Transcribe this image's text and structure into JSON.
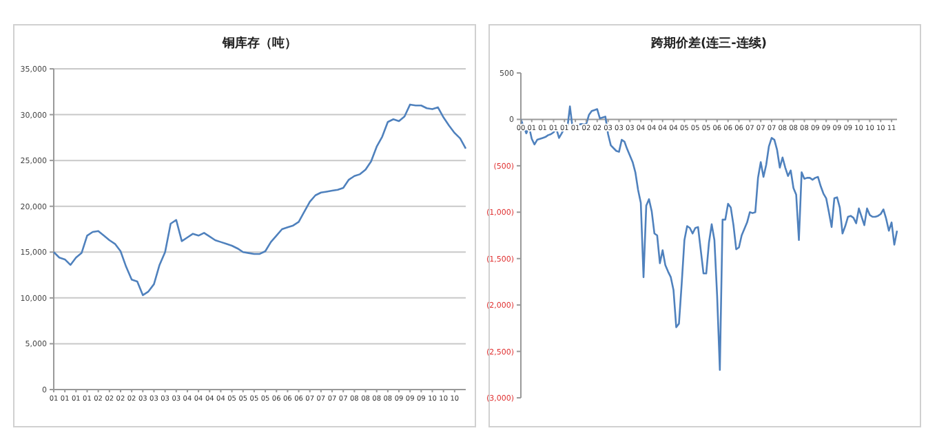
{
  "chart_data": [
    {
      "type": "line",
      "title": "铜库存（吨）",
      "grid": "y",
      "ylim": [
        0,
        35000
      ],
      "yticks": [
        {
          "value": 0,
          "label": "0"
        },
        {
          "value": 5000,
          "label": "5,000"
        },
        {
          "value": 10000,
          "label": "10,000"
        },
        {
          "value": 15000,
          "label": "15,000"
        },
        {
          "value": 20000,
          "label": "20,000"
        },
        {
          "value": 25000,
          "label": "25,000"
        },
        {
          "value": 30000,
          "label": "30,000"
        },
        {
          "value": 35000,
          "label": "35,000"
        }
      ],
      "categories": [
        "01",
        null,
        "01",
        null,
        "01",
        null,
        "01",
        null,
        "02",
        null,
        "02",
        null,
        "02",
        null,
        "02",
        null,
        "03",
        null,
        "03",
        null,
        "03",
        null,
        "03",
        null,
        "04",
        null,
        "04",
        null,
        "04",
        null,
        "04",
        null,
        "05",
        null,
        "05",
        null,
        "05",
        null,
        "05",
        null,
        "06",
        null,
        "06",
        null,
        "06",
        null,
        "07",
        null,
        "07",
        null,
        "07",
        null,
        "07",
        null,
        "08",
        null,
        "08",
        null,
        "08",
        null,
        "08",
        null,
        "09",
        null,
        "09",
        null,
        "09",
        null,
        "10",
        null,
        "10",
        null,
        "10",
        null,
        null
      ],
      "series": [
        {
          "color": "#4f81bd",
          "values": [
            15000,
            14400,
            14200,
            13600,
            14400,
            14900,
            16800,
            17200,
            17300,
            16800,
            16300,
            15900,
            15100,
            13400,
            12000,
            11800,
            10300,
            10700,
            11500,
            13600,
            15000,
            18100,
            18500,
            16200,
            16600,
            17000,
            16800,
            17100,
            16700,
            16300,
            16100,
            15900,
            15700,
            15400,
            15000,
            14900,
            14800,
            14800,
            15100,
            16100,
            16800,
            17500,
            17700,
            17900,
            18300,
            19400,
            20500,
            21200,
            21500,
            21600,
            21700,
            21800,
            22000,
            22900,
            23300,
            23500,
            24000,
            24900,
            26500,
            27600,
            29200,
            29500,
            29300,
            29800,
            31100,
            31000,
            31000,
            30700,
            30600,
            30800,
            29700,
            28800,
            28000,
            27400,
            26300
          ]
        }
      ]
    },
    {
      "type": "line",
      "title": "跨期价差(连三-连续)",
      "ylim": [
        -3000,
        500
      ],
      "yticks": [
        {
          "value": 500,
          "label": "500"
        },
        {
          "value": 0,
          "label": "0"
        },
        {
          "value": -500,
          "label": "(500)"
        },
        {
          "value": -1000,
          "label": "(1,000)"
        },
        {
          "value": -1500,
          "label": "(1,500)"
        },
        {
          "value": -2000,
          "label": "(2,000)"
        },
        {
          "value": -2500,
          "label": "(2,500)"
        },
        {
          "value": -3000,
          "label": "(3,000)"
        }
      ],
      "categories": [
        "00",
        null,
        null,
        null,
        "01",
        null,
        null,
        null,
        "01",
        null,
        null,
        null,
        "01",
        null,
        null,
        null,
        "01",
        null,
        null,
        null,
        "01",
        null,
        null,
        null,
        "02",
        null,
        null,
        null,
        "02",
        null,
        null,
        null,
        "03",
        null,
        null,
        null,
        "03",
        null,
        null,
        null,
        "03",
        null,
        null,
        null,
        "04",
        null,
        null,
        null,
        "04",
        null,
        null,
        null,
        "04",
        null,
        null,
        null,
        "04",
        null,
        null,
        null,
        "05",
        null,
        null,
        null,
        "05",
        null,
        null,
        null,
        "05",
        null,
        null,
        null,
        "06",
        null,
        null,
        null,
        "06",
        null,
        null,
        null,
        "06",
        null,
        null,
        null,
        "07",
        null,
        null,
        null,
        "07",
        null,
        null,
        null,
        "07",
        null,
        null,
        null,
        "08",
        null,
        null,
        null,
        "08",
        null,
        null,
        null,
        "08",
        null,
        null,
        null,
        "09",
        null,
        null,
        null,
        "09",
        null,
        null,
        null,
        "09",
        null,
        null,
        null,
        "09",
        null,
        null,
        null,
        "10",
        null,
        null,
        null,
        "10",
        null,
        null,
        null,
        "10",
        null,
        null,
        null,
        "11",
        null,
        null
      ],
      "series": [
        {
          "color": "#4f81bd",
          "values": [
            0,
            -80,
            -150,
            -80,
            -210,
            -270,
            -220,
            -210,
            -200,
            -190,
            -170,
            -160,
            -140,
            -100,
            -200,
            -150,
            -90,
            -110,
            140,
            -100,
            -60,
            -60,
            -50,
            -50,
            -50,
            50,
            90,
            100,
            110,
            10,
            20,
            30,
            -160,
            -280,
            -310,
            -340,
            -350,
            -220,
            -240,
            -320,
            -390,
            -460,
            -570,
            -760,
            -900,
            -1700,
            -930,
            -860,
            -990,
            -1230,
            -1250,
            -1550,
            -1410,
            -1570,
            -1640,
            -1700,
            -1840,
            -2240,
            -2200,
            -1770,
            -1300,
            -1150,
            -1170,
            -1230,
            -1170,
            -1160,
            -1410,
            -1660,
            -1660,
            -1330,
            -1130,
            -1300,
            -1900,
            -2700,
            -1080,
            -1080,
            -910,
            -950,
            -1140,
            -1400,
            -1380,
            -1250,
            -1180,
            -1110,
            -1000,
            -1010,
            -1000,
            -630,
            -460,
            -620,
            -490,
            -290,
            -200,
            -220,
            -330,
            -520,
            -410,
            -520,
            -610,
            -550,
            -740,
            -810,
            -1300,
            -570,
            -640,
            -630,
            -630,
            -650,
            -630,
            -620,
            -720,
            -800,
            -850,
            -1000,
            -1160,
            -850,
            -840,
            -950,
            -1230,
            -1150,
            -1050,
            -1040,
            -1060,
            -1120,
            -960,
            -1050,
            -1140,
            -960,
            -1030,
            -1050,
            -1050,
            -1040,
            -1020,
            -970,
            -1070,
            -1200,
            -1110,
            -1350,
            -1200
          ]
        }
      ]
    }
  ]
}
